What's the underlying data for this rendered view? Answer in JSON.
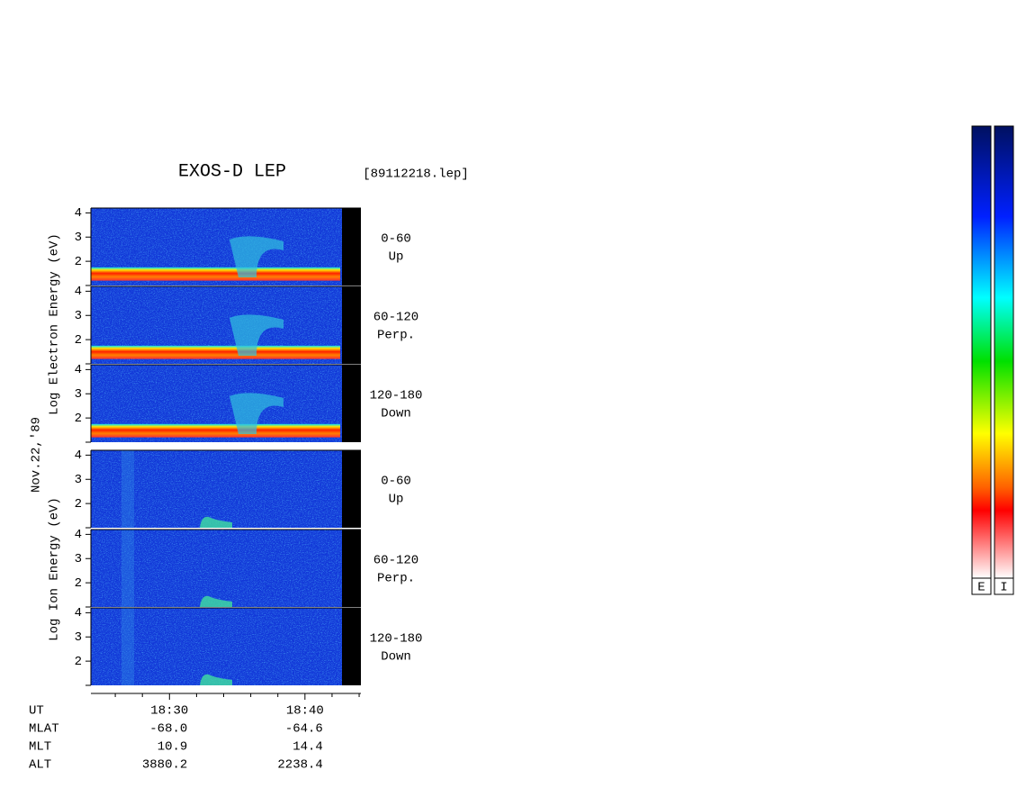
{
  "chart_data": {
    "type": "spectrogram",
    "title": "EXOS-D LEP",
    "subtitle": "[89112218.lep]",
    "date_label": "Nov.22,'89",
    "electron_label": "Log  Electron  Energy (eV)",
    "ion_label": "Log  Ion  Energy (eV)",
    "panels": [
      {
        "species": "electron",
        "angle": "0-60",
        "direction": "Up"
      },
      {
        "species": "electron",
        "angle": "60-120",
        "direction": "Perp."
      },
      {
        "species": "electron",
        "angle": "120-180",
        "direction": "Down"
      },
      {
        "species": "ion",
        "angle": "0-60",
        "direction": "Up"
      },
      {
        "species": "ion",
        "angle": "60-120",
        "direction": "Perp."
      },
      {
        "species": "ion",
        "angle": "120-180",
        "direction": "Down"
      }
    ],
    "ylim": [
      1,
      4.2
    ],
    "yticks": [
      2,
      3,
      4
    ],
    "xlim": [
      1104.2,
      1124.13
    ],
    "xticks": [
      {
        "value": 1110,
        "label": "18:30"
      },
      {
        "value": 1120,
        "label": "18:40"
      }
    ],
    "xminorticks": [
      1106,
      1108,
      1112,
      1114,
      1116,
      1118,
      1122,
      1124
    ],
    "ephemeris": {
      "labels": [
        "UT",
        "MLAT",
        "MLT",
        "ALT"
      ],
      "columns": [
        [
          "-68.0",
          "10.9",
          "3880.2"
        ],
        [
          "-64.6",
          "14.4",
          "2238.4"
        ]
      ]
    },
    "colorbar_labels": [
      "E",
      "I"
    ]
  }
}
